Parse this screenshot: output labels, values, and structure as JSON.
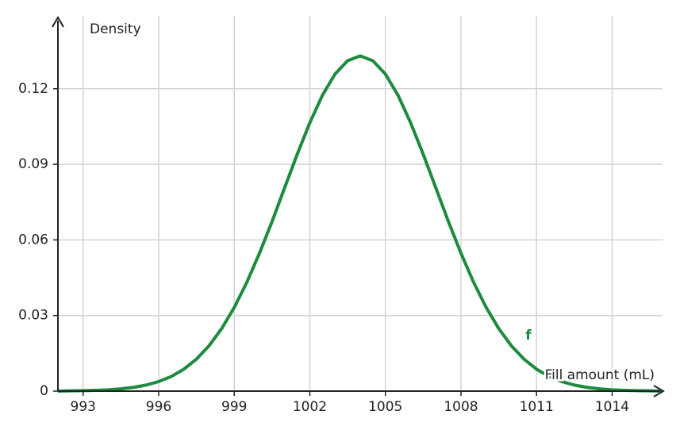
{
  "chart_data": {
    "type": "line",
    "y_label": "Density",
    "x_label": "Fill amount (mL)",
    "x": [
      992,
      992.5,
      993,
      993.5,
      994,
      994.5,
      995,
      995.5,
      996,
      996.5,
      997,
      997.5,
      998,
      998.5,
      999,
      999.5,
      1000,
      1000.5,
      1001,
      1001.5,
      1002,
      1002.5,
      1003,
      1003.5,
      1004,
      1004.5,
      1005,
      1005.5,
      1006,
      1006.5,
      1007,
      1007.5,
      1008,
      1008.5,
      1009,
      1009.5,
      1010,
      1010.5,
      1011,
      1011.5,
      1012,
      1012.5,
      1013,
      1013.5,
      1014,
      1014.5,
      1015,
      1015.5,
      1016
    ],
    "series": [
      {
        "name": "f",
        "color": "#1e8a3e",
        "values": [
          0.0,
          0.0001,
          0.0002,
          0.0003,
          0.0005,
          0.0009,
          0.0015,
          0.0024,
          0.0038,
          0.0058,
          0.0087,
          0.0127,
          0.018,
          0.0248,
          0.0332,
          0.0432,
          0.0547,
          0.0673,
          0.0807,
          0.094,
          0.1065,
          0.1174,
          0.1258,
          0.1311,
          0.133,
          0.1311,
          0.1258,
          0.1174,
          0.1065,
          0.094,
          0.0807,
          0.0673,
          0.0547,
          0.0432,
          0.0332,
          0.0248,
          0.018,
          0.0127,
          0.0087,
          0.0058,
          0.0038,
          0.0024,
          0.0015,
          0.0009,
          0.0005,
          0.0003,
          0.0002,
          0.0001,
          0.0
        ]
      }
    ],
    "xlim": [
      992,
      1016
    ],
    "ylim": [
      0,
      0.147
    ],
    "xticks": [
      993,
      996,
      999,
      1002,
      1005,
      1008,
      1011,
      1014
    ],
    "yticks": [
      0,
      0.03,
      0.06,
      0.09,
      0.12
    ],
    "grid": true
  }
}
